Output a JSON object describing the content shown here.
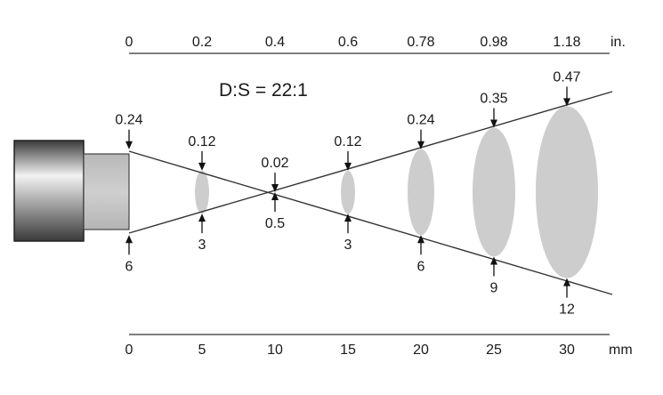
{
  "ratio_label": "D:S = 22:1",
  "top_axis": {
    "unit": "in.",
    "ticks": [
      "0",
      "0.2",
      "0.4",
      "0.6",
      "0.78",
      "0.98",
      "1.18"
    ]
  },
  "bottom_axis": {
    "unit": "mm",
    "ticks": [
      "0",
      "5",
      "10",
      "15",
      "20",
      "25",
      "30"
    ]
  },
  "stations": [
    {
      "distance_mm": 0,
      "spot_in": "0.24",
      "spot_mm": "6"
    },
    {
      "distance_mm": 5,
      "spot_in": "0.12",
      "spot_mm": "3"
    },
    {
      "distance_mm": 10,
      "spot_in": "0.02",
      "spot_mm": "0.5"
    },
    {
      "distance_mm": 15,
      "spot_in": "0.12",
      "spot_mm": "3"
    },
    {
      "distance_mm": 20,
      "spot_in": "0.24",
      "spot_mm": "6"
    },
    {
      "distance_mm": 25,
      "spot_in": "0.35",
      "spot_mm": "9"
    },
    {
      "distance_mm": 30,
      "spot_in": "0.47",
      "spot_mm": "12"
    }
  ],
  "colors": {
    "spot": "#cdcdcd",
    "line": "#333333"
  }
}
